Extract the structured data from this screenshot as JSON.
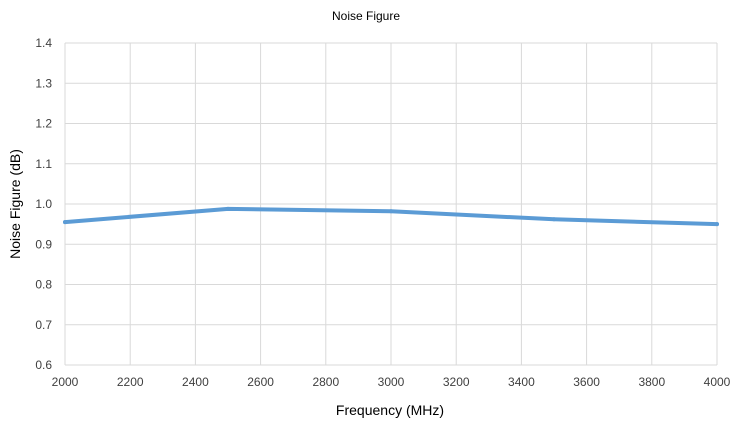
{
  "chart_data": {
    "type": "line",
    "title": "Noise Figure",
    "xlabel": "Frequency (MHz)",
    "ylabel": "Noise Figure (dB)",
    "xlim": [
      2000,
      4000
    ],
    "ylim": [
      0.6,
      1.4
    ],
    "x_ticks": [
      "2000",
      "2200",
      "2400",
      "2600",
      "2800",
      "3000",
      "3200",
      "3400",
      "3600",
      "3800",
      "4000"
    ],
    "y_ticks": [
      "0.6",
      "0.7",
      "0.8",
      "0.9",
      "1.0",
      "1.1",
      "1.2",
      "1.3",
      "1.4"
    ],
    "grid": true,
    "legend": "none",
    "series": [
      {
        "color": "#5b9bd5",
        "x": [
          2000,
          2500,
          3000,
          3500,
          4000
        ],
        "y": [
          0.955,
          0.988,
          0.982,
          0.962,
          0.95
        ]
      }
    ]
  }
}
